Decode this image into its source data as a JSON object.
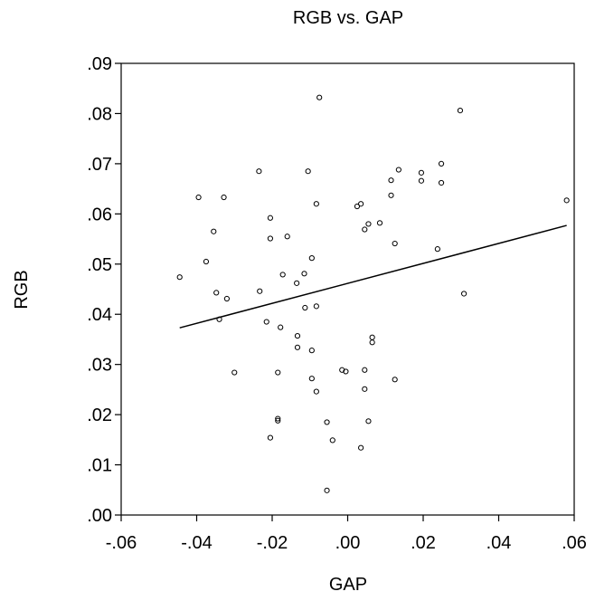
{
  "chart_data": {
    "type": "scatter",
    "title": "RGB vs. GAP",
    "xlabel": "GAP",
    "ylabel": "RGB",
    "xlim": [
      -0.06,
      0.06
    ],
    "ylim": [
      0.0,
      0.09
    ],
    "x_ticks": [
      -0.06,
      -0.04,
      -0.02,
      0.0,
      0.02,
      0.04,
      0.06
    ],
    "x_tick_labels": [
      "-.06",
      "-.04",
      "-.02",
      ".00",
      ".02",
      ".04",
      ".06"
    ],
    "y_ticks": [
      0.0,
      0.01,
      0.02,
      0.03,
      0.04,
      0.05,
      0.06,
      0.07,
      0.08,
      0.09
    ],
    "y_tick_labels": [
      ".00",
      ".01",
      ".02",
      ".03",
      ".04",
      ".05",
      ".06",
      ".07",
      ".08",
      ".09"
    ],
    "grid": false,
    "points": [
      {
        "x": -0.0445,
        "y": 0.0474
      },
      {
        "x": -0.0395,
        "y": 0.0633
      },
      {
        "x": -0.0375,
        "y": 0.0505
      },
      {
        "x": -0.0355,
        "y": 0.0565
      },
      {
        "x": -0.0348,
        "y": 0.0443
      },
      {
        "x": -0.034,
        "y": 0.039
      },
      {
        "x": -0.0328,
        "y": 0.0633
      },
      {
        "x": -0.032,
        "y": 0.0431
      },
      {
        "x": -0.03,
        "y": 0.0284
      },
      {
        "x": -0.0235,
        "y": 0.0685
      },
      {
        "x": -0.0233,
        "y": 0.0446
      },
      {
        "x": -0.0215,
        "y": 0.0385
      },
      {
        "x": -0.0205,
        "y": 0.0592
      },
      {
        "x": -0.0205,
        "y": 0.0551
      },
      {
        "x": -0.0205,
        "y": 0.0154
      },
      {
        "x": -0.0185,
        "y": 0.0284
      },
      {
        "x": -0.0185,
        "y": 0.0192
      },
      {
        "x": -0.0185,
        "y": 0.0188
      },
      {
        "x": -0.0178,
        "y": 0.0374
      },
      {
        "x": -0.0172,
        "y": 0.0479
      },
      {
        "x": -0.016,
        "y": 0.0555
      },
      {
        "x": -0.0135,
        "y": 0.0462
      },
      {
        "x": -0.0133,
        "y": 0.0357
      },
      {
        "x": -0.0133,
        "y": 0.0334
      },
      {
        "x": -0.0115,
        "y": 0.0481
      },
      {
        "x": -0.0113,
        "y": 0.0413
      },
      {
        "x": -0.0105,
        "y": 0.0685
      },
      {
        "x": -0.0095,
        "y": 0.0512
      },
      {
        "x": -0.0095,
        "y": 0.0328
      },
      {
        "x": -0.0095,
        "y": 0.0272
      },
      {
        "x": -0.0083,
        "y": 0.062
      },
      {
        "x": -0.0083,
        "y": 0.0416
      },
      {
        "x": -0.0083,
        "y": 0.0246
      },
      {
        "x": -0.0075,
        "y": 0.0832
      },
      {
        "x": -0.0055,
        "y": 0.0185
      },
      {
        "x": -0.0055,
        "y": 0.0049
      },
      {
        "x": -0.004,
        "y": 0.0149
      },
      {
        "x": -0.0015,
        "y": 0.0289
      },
      {
        "x": -0.0005,
        "y": 0.0286
      },
      {
        "x": 0.0025,
        "y": 0.0615
      },
      {
        "x": 0.0035,
        "y": 0.062
      },
      {
        "x": 0.0035,
        "y": 0.0134
      },
      {
        "x": 0.0045,
        "y": 0.0569
      },
      {
        "x": 0.0045,
        "y": 0.0289
      },
      {
        "x": 0.0045,
        "y": 0.0251
      },
      {
        "x": 0.0055,
        "y": 0.058
      },
      {
        "x": 0.0055,
        "y": 0.0187
      },
      {
        "x": 0.0065,
        "y": 0.0354
      },
      {
        "x": 0.0065,
        "y": 0.0344
      },
      {
        "x": 0.0085,
        "y": 0.0582
      },
      {
        "x": 0.0115,
        "y": 0.0667
      },
      {
        "x": 0.0115,
        "y": 0.0637
      },
      {
        "x": 0.0125,
        "y": 0.0541
      },
      {
        "x": 0.0125,
        "y": 0.027
      },
      {
        "x": 0.0135,
        "y": 0.0688
      },
      {
        "x": 0.0195,
        "y": 0.0682
      },
      {
        "x": 0.0195,
        "y": 0.0666
      },
      {
        "x": 0.0238,
        "y": 0.053
      },
      {
        "x": 0.0248,
        "y": 0.07
      },
      {
        "x": 0.0248,
        "y": 0.0662
      },
      {
        "x": 0.0298,
        "y": 0.0806
      },
      {
        "x": 0.0308,
        "y": 0.0441
      },
      {
        "x": 0.058,
        "y": 0.0627
      }
    ],
    "fit_line": {
      "x": [
        -0.0445,
        0.058
      ],
      "y": [
        0.0373,
        0.0577
      ]
    }
  }
}
